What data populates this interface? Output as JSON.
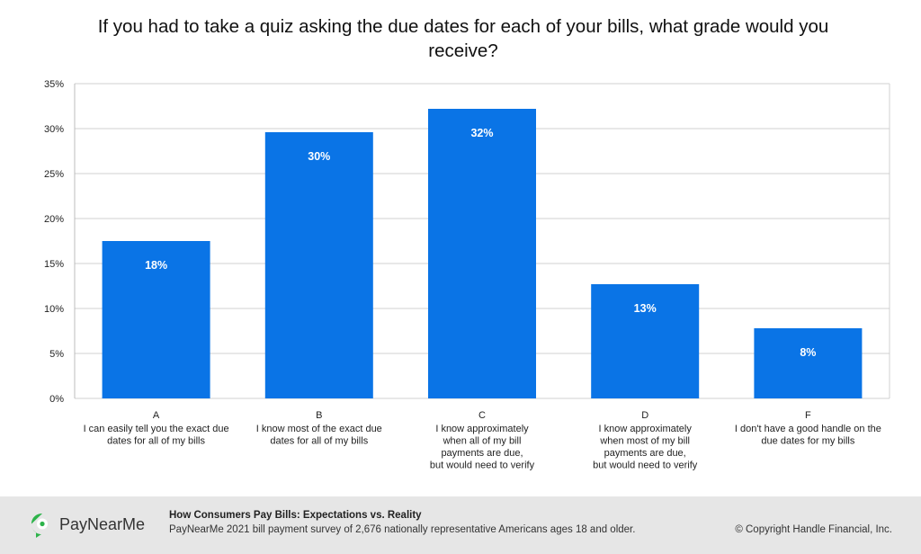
{
  "title": "If you had to take a quiz asking the due dates for each of your bills, what grade would you receive?",
  "chart_data": {
    "type": "bar",
    "categories": [
      "A",
      "B",
      "C",
      "D",
      "F"
    ],
    "descriptions": [
      [
        "I can easily tell you the exact due",
        "dates for all of my bills"
      ],
      [
        "I know most of the exact due",
        "dates for all of my bills"
      ],
      [
        "I know approximately",
        "when all of my bill",
        "payments are due,",
        "but would need to verify"
      ],
      [
        "I know approximately",
        "when most of my bill",
        "payments are due,",
        "but would need to verify"
      ],
      [
        "I don't have a good handle on the",
        "due dates for my bills"
      ]
    ],
    "values": [
      17.5,
      29.6,
      32.2,
      12.7,
      7.8
    ],
    "data_labels": [
      "18%",
      "30%",
      "32%",
      "13%",
      "8%"
    ],
    "yticks": [
      "0%",
      "5%",
      "10%",
      "15%",
      "20%",
      "25%",
      "30%",
      "35%"
    ],
    "ylim": [
      0,
      35
    ],
    "grid": true,
    "bar_color": "#0a74e6"
  },
  "footer": {
    "brand": "PayNearMe",
    "brand_color": "#2db34a",
    "source_title": "How Consumers Pay Bills: Expectations vs. Reality",
    "source_text": "PayNearMe 2021 bill payment survey of 2,676 nationally representative Americans ages 18 and older.",
    "copyright": "© Copyright Handle Financial, Inc."
  }
}
